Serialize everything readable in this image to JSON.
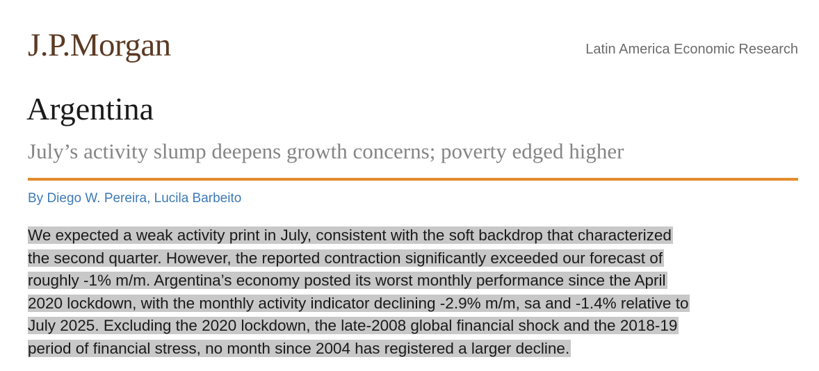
{
  "header": {
    "logo": "J.P.Morgan",
    "series": "Latin America Economic Research"
  },
  "title": "Argentina",
  "subtitle": "July’s activity slump deepens growth concerns; poverty edged higher",
  "authors": "By Diego W. Pereira, Lucila Barbeito",
  "body": {
    "lines": [
      "We expected a weak activity print in July, consistent with the soft backdrop that characterized",
      "the second quarter. However, the reported contraction significantly exceeded our forecast of",
      "roughly -1% m/m. Argentina’s economy posted its worst monthly performance since the April",
      "2020 lockdown, with the monthly activity indicator declining -2.9% m/m, sa and -1.4% relative to",
      "July 2025. Excluding the 2020 lockdown, the late-2008 global financial shock and the 2018-19",
      "period of financial stress, no month since 2004 has registered a larger decline."
    ]
  }
}
